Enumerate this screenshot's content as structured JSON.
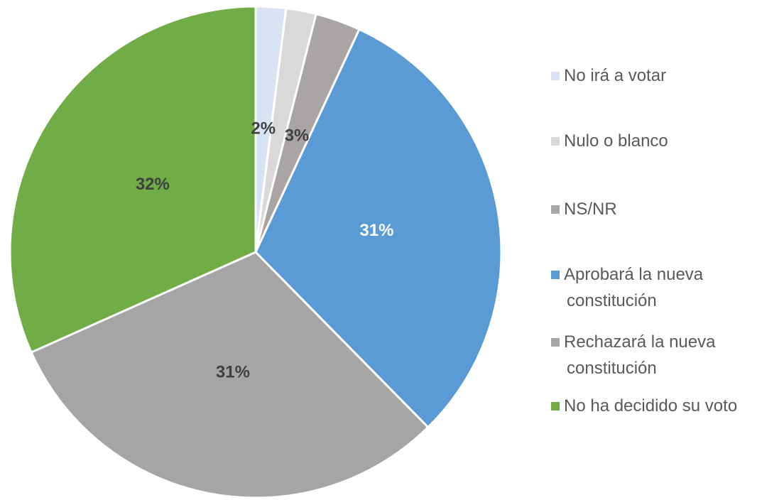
{
  "chart_data": {
    "type": "pie",
    "categories": [
      "No irá a votar",
      "Nulo o blanco",
      "NS/NR",
      "Aprobará la nueva constitución",
      "Rechazará la nueva constitución",
      "No ha decidido su voto"
    ],
    "values": [
      2,
      2,
      3,
      31,
      31,
      32
    ],
    "value_labels": [
      "2%",
      null,
      "3%",
      "31%",
      "31%",
      "32%"
    ],
    "colors": [
      "#dae3f3",
      "#d9d9d9",
      "#a9a5a5",
      "#5b9bd5",
      "#a5a5a5",
      "#70ad47"
    ],
    "label_colors": [
      "#404040",
      "#404040",
      "#404040",
      "#ffffff",
      "#404040",
      "#404040"
    ],
    "legend": "right"
  }
}
